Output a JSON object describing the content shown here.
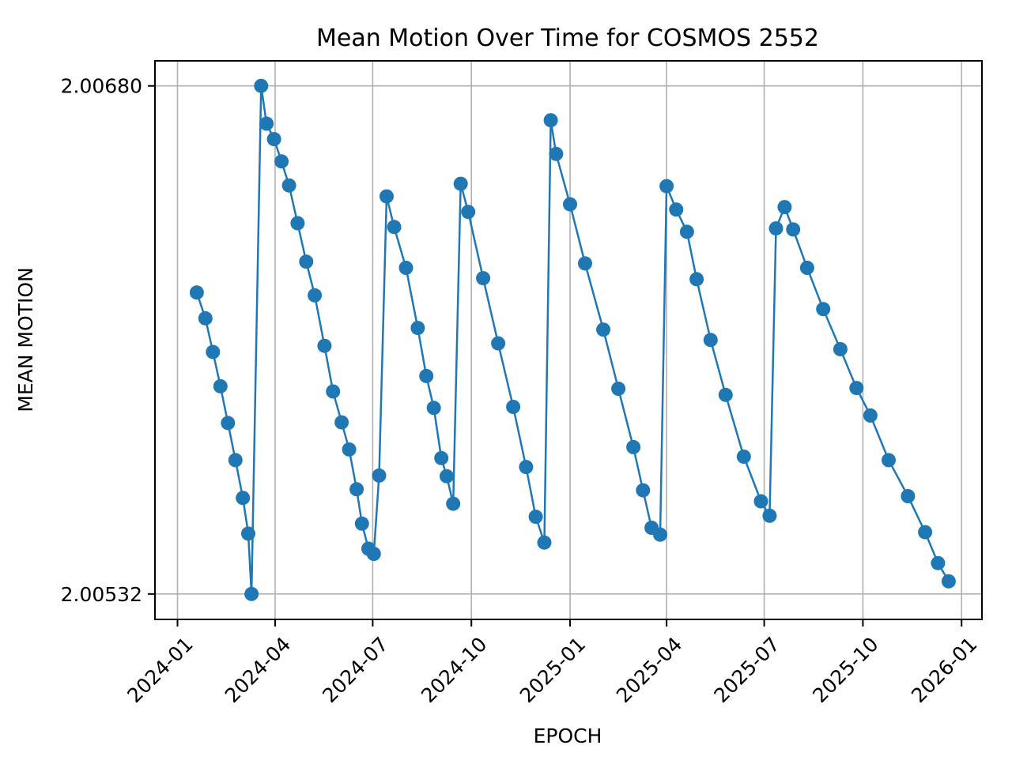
{
  "chart_data": {
    "type": "line",
    "title": "Mean Motion Over Time for COSMOS 2552",
    "xlabel": "EPOCH",
    "ylabel": "MEAN MOTION",
    "xlim": [
      "2023-12-11",
      "2026-01-20"
    ],
    "ylim": [
      2.005246,
      2.006873
    ],
    "x_ticks": [
      "2024-01",
      "2024-04",
      "2024-07",
      "2024-10",
      "2025-01",
      "2025-04",
      "2025-07",
      "2025-10",
      "2026-01"
    ],
    "y_ticks": [
      {
        "value": 2.00532,
        "label": "2.00532"
      },
      {
        "value": 2.0068,
        "label": "2.00680"
      }
    ],
    "grid": true,
    "legend": "none",
    "series_color": "#1f77b4",
    "series": [
      {
        "points": [
          [
            "2024-01-19",
            2.006198
          ],
          [
            "2024-01-27",
            2.006123
          ],
          [
            "2024-02-03",
            2.006025
          ],
          [
            "2024-02-10",
            2.005925
          ],
          [
            "2024-02-17",
            2.005818
          ],
          [
            "2024-02-24",
            2.00571
          ],
          [
            "2024-03-02",
            2.0056
          ],
          [
            "2024-03-07",
            2.005496
          ],
          [
            "2024-03-10",
            2.00532
          ],
          [
            "2024-03-19",
            2.0068
          ],
          [
            "2024-03-24",
            2.00669
          ],
          [
            "2024-03-31",
            2.006645
          ],
          [
            "2024-04-07",
            2.00658
          ],
          [
            "2024-04-14",
            2.00651
          ],
          [
            "2024-04-22",
            2.0064
          ],
          [
            "2024-04-30",
            2.006288
          ],
          [
            "2024-05-08",
            2.00619
          ],
          [
            "2024-05-17",
            2.006043
          ],
          [
            "2024-05-25",
            2.00591
          ],
          [
            "2024-06-02",
            2.00582
          ],
          [
            "2024-06-09",
            2.005741
          ],
          [
            "2024-06-16",
            2.005625
          ],
          [
            "2024-06-21",
            2.005525
          ],
          [
            "2024-06-27",
            2.005452
          ],
          [
            "2024-07-02",
            2.005437
          ],
          [
            "2024-07-07",
            2.005665
          ],
          [
            "2024-07-14",
            2.006478
          ],
          [
            "2024-07-21",
            2.006389
          ],
          [
            "2024-08-01",
            2.00627
          ],
          [
            "2024-08-12",
            2.006095
          ],
          [
            "2024-08-20",
            2.005955
          ],
          [
            "2024-08-27",
            2.005862
          ],
          [
            "2024-09-03",
            2.005716
          ],
          [
            "2024-09-08",
            2.005663
          ],
          [
            "2024-09-14",
            2.005583
          ],
          [
            "2024-09-21",
            2.006515
          ],
          [
            "2024-09-28",
            2.006433
          ],
          [
            "2024-10-12",
            2.00624
          ],
          [
            "2024-10-26",
            2.00605
          ],
          [
            "2024-11-09",
            2.005865
          ],
          [
            "2024-11-21",
            2.00569
          ],
          [
            "2024-11-30",
            2.005545
          ],
          [
            "2024-12-08",
            2.00547
          ],
          [
            "2024-12-14",
            2.0067
          ],
          [
            "2024-12-19",
            2.006602
          ],
          [
            "2025-01-01",
            2.006455
          ],
          [
            "2025-01-15",
            2.006283
          ],
          [
            "2025-02-01",
            2.00609
          ],
          [
            "2025-02-15",
            2.005918
          ],
          [
            "2025-03-01",
            2.005748
          ],
          [
            "2025-03-10",
            2.005622
          ],
          [
            "2025-03-18",
            2.005513
          ],
          [
            "2025-03-26",
            2.005493
          ],
          [
            "2025-04-01",
            2.006508
          ],
          [
            "2025-04-10",
            2.00644
          ],
          [
            "2025-04-20",
            2.006375
          ],
          [
            "2025-04-29",
            2.006237
          ],
          [
            "2025-05-12",
            2.00606
          ],
          [
            "2025-05-26",
            2.0059
          ],
          [
            "2025-06-12",
            2.00572
          ],
          [
            "2025-06-28",
            2.00559
          ],
          [
            "2025-07-06",
            2.005548
          ],
          [
            "2025-07-12",
            2.006385
          ],
          [
            "2025-07-20",
            2.006447
          ],
          [
            "2025-07-28",
            2.006382
          ],
          [
            "2025-08-10",
            2.00627
          ],
          [
            "2025-08-25",
            2.00615
          ],
          [
            "2025-09-10",
            2.006033
          ],
          [
            "2025-09-25",
            2.00592
          ],
          [
            "2025-10-08",
            2.00584
          ],
          [
            "2025-10-25",
            2.00571
          ],
          [
            "2025-11-12",
            2.005605
          ],
          [
            "2025-11-28",
            2.0055
          ],
          [
            "2025-12-10",
            2.00541
          ],
          [
            "2025-12-20",
            2.005357
          ]
        ]
      }
    ]
  }
}
